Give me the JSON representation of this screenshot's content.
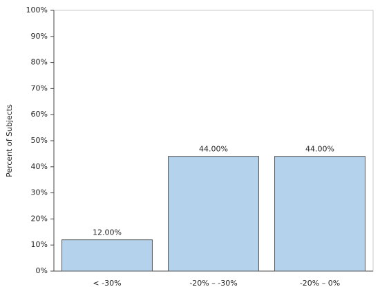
{
  "chart_data": {
    "type": "bar",
    "y_label": "Percent of Subjects",
    "categories": [
      "< -30%",
      "-20% – -30%",
      "-20% – 0%"
    ],
    "values": [
      12,
      44,
      44
    ],
    "value_labels": [
      "12.00%",
      "44.00%",
      "44.00%"
    ],
    "color": "#b4d2eb",
    "ylim": [
      0,
      100
    ],
    "yticks": [
      {
        "value": 0,
        "label": "0%"
      },
      {
        "value": 10,
        "label": "10%"
      },
      {
        "value": 20,
        "label": "20%"
      },
      {
        "value": 30,
        "label": "30%"
      },
      {
        "value": 40,
        "label": "40%"
      },
      {
        "value": 50,
        "label": "50%"
      },
      {
        "value": 60,
        "label": "60%"
      },
      {
        "value": 70,
        "label": "70%"
      },
      {
        "value": 80,
        "label": "80%"
      },
      {
        "value": 90,
        "label": "90%"
      },
      {
        "value": 100,
        "label": "100%"
      }
    ],
    "grid": false
  }
}
